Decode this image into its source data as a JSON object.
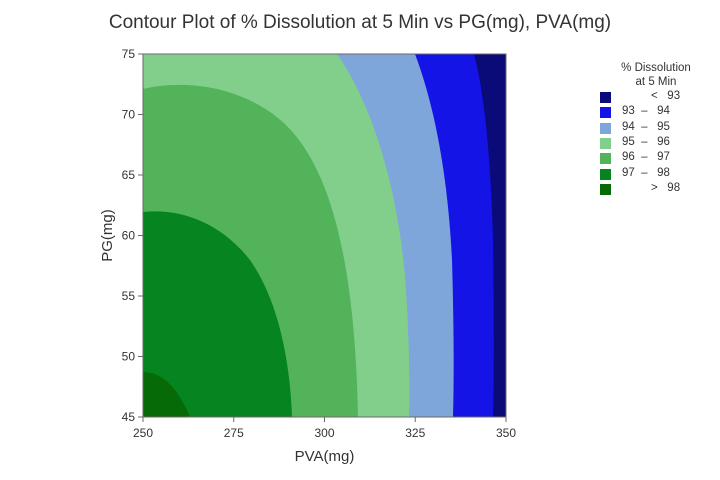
{
  "chart_data": {
    "type": "contour",
    "title": "Contour Plot of % Dissolution at 5 Min vs PG(mg), PVA(mg)",
    "xlabel": "PVA(mg)",
    "ylabel": "PG(mg)",
    "xlim": [
      250,
      350
    ],
    "ylim": [
      45,
      75
    ],
    "x_ticks": [
      "250",
      "275",
      "300",
      "325",
      "350"
    ],
    "y_ticks": [
      "45",
      "50",
      "55",
      "60",
      "65",
      "70",
      "75"
    ],
    "x_tick_values": [
      250,
      275,
      300,
      325,
      350
    ],
    "y_tick_values": [
      45,
      50,
      55,
      60,
      65,
      70,
      75
    ],
    "legend": {
      "title_line1": "% Dissolution",
      "title_line2": "at 5 Min",
      "placement": "right",
      "levels": [
        {
          "label": "<   93",
          "color": "#0a0a78"
        },
        {
          "label": "93  –   94",
          "color": "#1414e6"
        },
        {
          "label": "94  –   95",
          "color": "#7ea6da"
        },
        {
          "label": "95  –   96",
          "color": "#82cf8c"
        },
        {
          "label": "96  –   97",
          "color": "#52b35a"
        },
        {
          "label": "97  –   98",
          "color": "#05841f"
        },
        {
          "label": ">   98",
          "color": "#066b06"
        }
      ]
    },
    "regions": [
      {
        "range": "< 93",
        "color": "#0a0a78",
        "boundary_at_y45": 350,
        "boundary_at_y75": 350
      },
      {
        "range": "93 - 94",
        "color": "#1414e6",
        "boundary_at_y45": 346,
        "boundary_at_y75": 341
      },
      {
        "range": "94 - 95",
        "color": "#7ea6da",
        "boundary_at_y45": 336,
        "boundary_at_y75": 326
      },
      {
        "range": "95 - 96",
        "color": "#82cf8c",
        "boundary_at_y45": 323,
        "boundary_at_y75": 305
      },
      {
        "range": "96 - 97",
        "color": "#52b35a",
        "boundary_at_y45": 309,
        "boundary_at_y72": 250
      },
      {
        "range": "97 - 98",
        "color": "#05841f",
        "boundary_at_y45": 291,
        "boundary_at_y62": 250
      },
      {
        "range": "> 98",
        "color": "#066b06",
        "boundary_at_y45": 263,
        "boundary_at_y49": 250
      }
    ]
  }
}
